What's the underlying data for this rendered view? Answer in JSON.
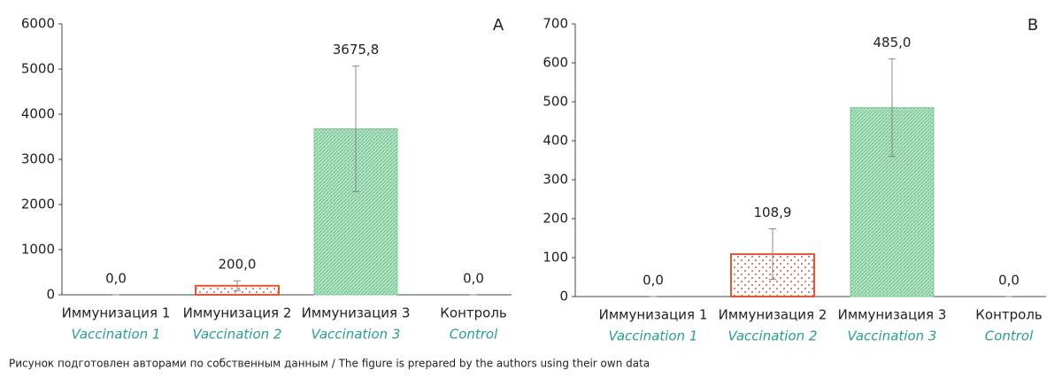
{
  "chart_data": [
    {
      "type": "bar",
      "label": "A",
      "categories": [
        "Иммунизация 1",
        "Иммунизация 2",
        "Иммунизация 3",
        "Контроль"
      ],
      "categories_en": [
        "Vaccination 1",
        "Vaccination 2",
        "Vaccination 3",
        "Control"
      ],
      "values": [
        0,
        200,
        3675.8,
        0
      ],
      "value_labels": [
        "0,0",
        "200,0",
        "3675,8",
        "0,0"
      ],
      "errors": [
        0,
        110,
        1390,
        0
      ],
      "colors": [
        "#e0573a",
        "#e0573a",
        "#7dcb98",
        "#7dcb98"
      ],
      "ylim": [
        0,
        6000
      ],
      "yticks": [
        0,
        1000,
        2000,
        3000,
        4000,
        5000,
        6000
      ]
    },
    {
      "type": "bar",
      "label": "B",
      "categories": [
        "Иммунизация 1",
        "Иммунизация 2",
        "Иммунизация 3",
        "Контроль"
      ],
      "categories_en": [
        "Vaccination 1",
        "Vaccination 2",
        "Vaccination 3",
        "Control"
      ],
      "values": [
        0,
        108.9,
        485,
        0
      ],
      "value_labels": [
        "0,0",
        "108,9",
        "485,0",
        "0,0"
      ],
      "errors": [
        0,
        65,
        125,
        0
      ],
      "colors": [
        "#e0573a",
        "#e0573a",
        "#7dcb98",
        "#7dcb98"
      ],
      "ylim": [
        0,
        700
      ],
      "yticks": [
        0,
        100,
        200,
        300,
        400,
        500,
        600,
        700
      ]
    }
  ],
  "caption": "Рисунок подготовлен авторами по собственным данным / The figure is prepared by the authors using their own data"
}
